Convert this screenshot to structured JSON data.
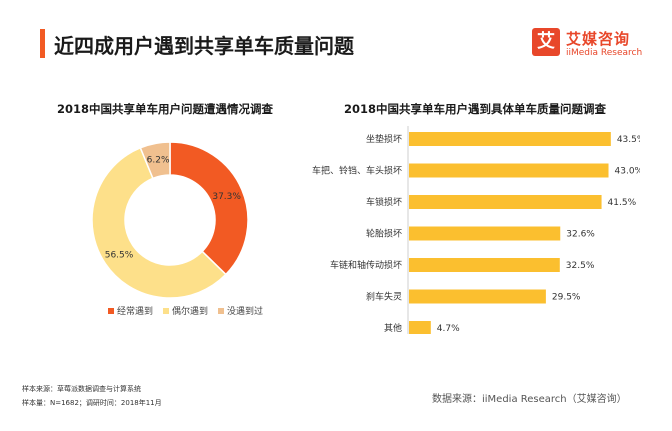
{
  "page_title": "近四成用户遇到共享单车质量问题",
  "logo": {
    "icon_text": "艾",
    "name_cn": "艾媒咨询",
    "name_en": "iiMedia Research"
  },
  "colors": {
    "accent": "#f25a23",
    "often": "#f25a23",
    "sometimes": "#fde08a",
    "never": "#f0c08f",
    "bar": "#fbbf2f"
  },
  "chart_data": [
    {
      "type": "pie",
      "title": "2018中国共享单车用户问题遭遇情况调查",
      "donut": true,
      "categories": [
        "经常遇到",
        "偶尔遇到",
        "没遇到过"
      ],
      "values": [
        37.3,
        56.5,
        6.2
      ],
      "labels": [
        "37.3%",
        "56.5%",
        "6.2%"
      ],
      "colors": [
        "#f25a23",
        "#fde08a",
        "#f0c08f"
      ],
      "legend": "bottom"
    },
    {
      "type": "bar",
      "orientation": "horizontal",
      "title": "2018中国共享单车用户遇到具体单车质量问题调查",
      "categories": [
        "坐垫损坏",
        "车把、铃铛、车头损坏",
        "车锁损坏",
        "轮胎损坏",
        "车链和轴传动损坏",
        "刹车失灵",
        "其他"
      ],
      "values": [
        43.5,
        43.0,
        41.5,
        32.6,
        32.5,
        29.5,
        4.7
      ],
      "labels": [
        "43.5%",
        "43.0%",
        "41.5%",
        "32.6%",
        "32.5%",
        "29.5%",
        "4.7%"
      ],
      "xlim": [
        0,
        50
      ],
      "grid": false
    }
  ],
  "footnotes": {
    "line1": "样本来源：草莓派数据调查与计算系统",
    "line2": "样本量：N=1682；调研时间：2018年11月"
  },
  "source": "数据来源：iiMedia Research（艾媒咨询）"
}
